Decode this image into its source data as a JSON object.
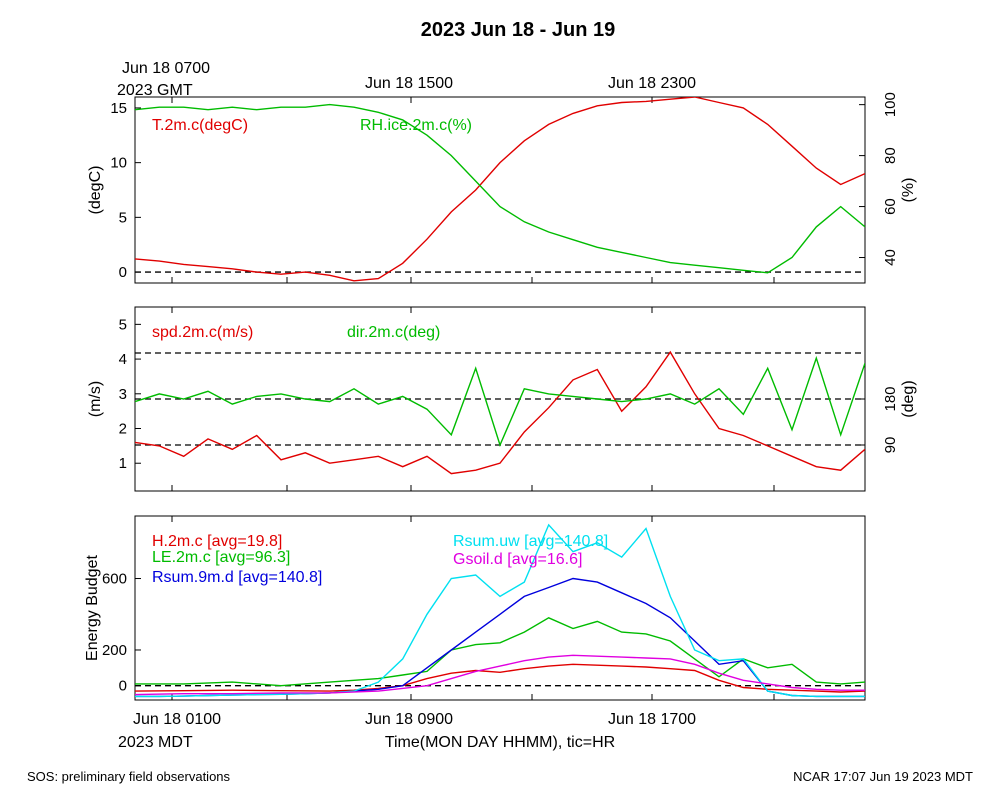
{
  "figure": {
    "title": "2023 Jun 18 - Jun 19",
    "top_axis_labels": [
      "Jun 18 0700",
      "2023 GMT",
      "Jun 18 1500",
      "Jun 18 2300"
    ],
    "bottom_axis_labels": [
      "Jun 18 0100",
      "2023 MDT",
      "Jun 18 0900",
      "Jun 18 1700"
    ],
    "xlabel": "Time(MON DAY HHMM), tic=HR",
    "footer_left": "SOS: preliminary field observations",
    "footer_right": "NCAR 17:07 Jun 19 2023 MDT"
  },
  "chart_data": [
    {
      "type": "line",
      "panel": "temperature-humidity",
      "x_unit": "hours since Jun 18 0000 MDT",
      "xlim": [
        0,
        30
      ],
      "ylabel": "(degC)",
      "ylim": [
        -1,
        16
      ],
      "yticks": [
        0,
        5,
        10,
        15
      ],
      "y2label": "(%)",
      "y2lim": [
        30,
        103
      ],
      "y2ticks": [
        40,
        60,
        80,
        100
      ],
      "grid": false,
      "legend": "top-left, inline",
      "reference_lines": [
        {
          "axis": "y",
          "value": 0
        }
      ],
      "series": [
        {
          "name": "T.2m.c(degC)",
          "axis": "left",
          "color": "#e00000",
          "x": [
            0,
            1,
            2,
            3,
            4,
            5,
            6,
            7,
            8,
            9,
            10,
            11,
            12,
            13,
            14,
            15,
            16,
            17,
            18,
            19,
            20,
            21,
            22,
            23,
            24,
            25,
            26,
            27,
            28,
            29,
            30
          ],
          "y": [
            1.2,
            1.0,
            0.7,
            0.5,
            0.3,
            0.0,
            -0.2,
            0.0,
            -0.3,
            -0.8,
            -0.6,
            0.8,
            3.0,
            5.5,
            7.5,
            10.0,
            12.0,
            13.5,
            14.5,
            15.2,
            15.5,
            15.6,
            15.8,
            16.0,
            15.5,
            15.0,
            13.5,
            11.5,
            9.5,
            8.0,
            9.0
          ]
        },
        {
          "name": "RH.ice.2m.c(%)",
          "axis": "right",
          "color": "#00bb00",
          "x": [
            0,
            1,
            2,
            3,
            4,
            5,
            6,
            7,
            8,
            9,
            10,
            11,
            12,
            13,
            14,
            15,
            16,
            17,
            18,
            19,
            20,
            21,
            22,
            23,
            24,
            25,
            26,
            27,
            28,
            29,
            30
          ],
          "y": [
            98,
            99,
            99,
            98,
            99,
            98,
            99,
            99,
            100,
            99,
            97,
            94,
            88,
            80,
            70,
            60,
            54,
            50,
            47,
            44,
            42,
            40,
            38,
            37,
            36,
            35,
            34,
            40,
            52,
            60,
            52
          ]
        }
      ]
    },
    {
      "type": "line",
      "panel": "wind",
      "x_unit": "hours since Jun 18 0000 MDT",
      "xlim": [
        0,
        30
      ],
      "ylabel": "(m/s)",
      "ylim": [
        0.2,
        5.5
      ],
      "yticks": [
        1,
        2,
        3,
        4,
        5
      ],
      "y2label": "(deg)",
      "y2lim": [
        0,
        360
      ],
      "y2ticks": [
        90,
        180
      ],
      "grid": false,
      "legend": "top-left, inline",
      "reference_lines": [
        {
          "axis": "y2",
          "value": 90
        },
        {
          "axis": "y2",
          "value": 180
        },
        {
          "axis": "y2",
          "value": 270
        }
      ],
      "series": [
        {
          "name": "spd.2m.c(m/s)",
          "axis": "left",
          "color": "#e00000",
          "x": [
            0,
            1,
            2,
            3,
            4,
            5,
            6,
            7,
            8,
            9,
            10,
            11,
            12,
            13,
            14,
            15,
            16,
            17,
            18,
            19,
            20,
            21,
            22,
            23,
            24,
            25,
            26,
            27,
            28,
            29,
            30
          ],
          "y": [
            1.6,
            1.5,
            1.2,
            1.7,
            1.4,
            1.8,
            1.1,
            1.3,
            1.0,
            1.1,
            1.2,
            0.9,
            1.2,
            0.7,
            0.8,
            1.0,
            1.9,
            2.6,
            3.4,
            3.7,
            2.5,
            3.2,
            4.2,
            3.0,
            2.0,
            1.8,
            1.5,
            1.2,
            0.9,
            0.8,
            1.4
          ]
        },
        {
          "name": "dir.2m.c(deg)",
          "axis": "right",
          "color": "#00bb00",
          "x": [
            0,
            1,
            2,
            3,
            4,
            5,
            6,
            7,
            8,
            9,
            10,
            11,
            12,
            13,
            14,
            15,
            16,
            17,
            18,
            19,
            20,
            21,
            22,
            23,
            24,
            25,
            26,
            27,
            28,
            29,
            30
          ],
          "y": [
            175,
            190,
            180,
            195,
            170,
            185,
            190,
            180,
            175,
            200,
            170,
            185,
            160,
            110,
            240,
            90,
            200,
            190,
            185,
            180,
            175,
            180,
            190,
            170,
            200,
            150,
            240,
            120,
            260,
            110,
            250
          ]
        }
      ]
    },
    {
      "type": "line",
      "panel": "energy-budget",
      "x_unit": "hours since Jun 18 0000 MDT",
      "xlim": [
        0,
        30
      ],
      "ylabel": "Energy Budget",
      "ylim": [
        -80,
        950
      ],
      "yticks": [
        0,
        200,
        600
      ],
      "grid": false,
      "legend": "top-left and top-center, inline",
      "reference_lines": [
        {
          "axis": "y",
          "value": 0
        }
      ],
      "series": [
        {
          "name": "H.2m.c [avg=19.8]",
          "color": "#e00000",
          "x": [
            0,
            2,
            4,
            6,
            8,
            9,
            10,
            11,
            12,
            13,
            14,
            15,
            16,
            17,
            18,
            19,
            20,
            21,
            22,
            23,
            24,
            25,
            26,
            27,
            28,
            29,
            30
          ],
          "y": [
            -30,
            -28,
            -25,
            -28,
            -30,
            -25,
            -15,
            0,
            40,
            70,
            85,
            75,
            95,
            110,
            120,
            115,
            110,
            105,
            95,
            85,
            30,
            -10,
            -20,
            -25,
            -30,
            -35,
            -30
          ]
        },
        {
          "name": "LE.2m.c [avg=96.3]",
          "color": "#00bb00",
          "x": [
            0,
            2,
            4,
            6,
            8,
            10,
            11,
            12,
            13,
            14,
            15,
            16,
            17,
            18,
            19,
            20,
            21,
            22,
            23,
            24,
            25,
            26,
            27,
            28,
            29,
            30
          ],
          "y": [
            10,
            10,
            20,
            0,
            20,
            40,
            60,
            80,
            200,
            230,
            240,
            300,
            380,
            320,
            360,
            300,
            290,
            250,
            150,
            50,
            150,
            100,
            120,
            20,
            10,
            20
          ]
        },
        {
          "name": "Rsum.9m.d [avg=140.8]",
          "color": "#0000dd",
          "x": [
            0,
            1,
            2,
            3,
            4,
            5,
            6,
            7,
            8,
            9,
            10,
            11,
            12,
            13,
            14,
            15,
            16,
            17,
            18,
            19,
            20,
            21,
            22,
            23,
            24,
            25,
            26,
            27,
            28,
            29,
            30
          ],
          "y": [
            -60,
            -60,
            -58,
            -55,
            -52,
            -50,
            -48,
            -45,
            -40,
            -30,
            -20,
            0,
            100,
            200,
            300,
            400,
            500,
            550,
            600,
            580,
            520,
            460,
            380,
            250,
            120,
            140,
            -30,
            -55,
            -60,
            -60,
            -60
          ]
        },
        {
          "name": "Rsum.uw [avg=140.8]",
          "color": "#00e0f0",
          "x": [
            0,
            1,
            2,
            3,
            4,
            5,
            6,
            7,
            8,
            9,
            10,
            11,
            12,
            13,
            14,
            15,
            16,
            17,
            18,
            19,
            20,
            21,
            22,
            23,
            24,
            25,
            26,
            27,
            28,
            29,
            30
          ],
          "y": [
            -60,
            -60,
            -58,
            -55,
            -52,
            -50,
            -48,
            -45,
            -40,
            -30,
            20,
            150,
            400,
            600,
            620,
            500,
            580,
            900,
            750,
            800,
            720,
            880,
            500,
            200,
            140,
            150,
            -30,
            -55,
            -60,
            -60,
            -60
          ]
        },
        {
          "name": "Gsoil.d [avg=16.6]",
          "color": "#e000e0",
          "x": [
            0,
            2,
            4,
            6,
            8,
            10,
            12,
            13,
            14,
            15,
            16,
            17,
            18,
            19,
            20,
            21,
            22,
            23,
            24,
            25,
            26,
            27,
            28,
            29,
            30
          ],
          "y": [
            -50,
            -45,
            -45,
            -40,
            -40,
            -30,
            0,
            40,
            80,
            110,
            140,
            160,
            170,
            165,
            160,
            155,
            150,
            120,
            70,
            30,
            10,
            -10,
            -20,
            -25,
            -25
          ]
        }
      ]
    }
  ]
}
